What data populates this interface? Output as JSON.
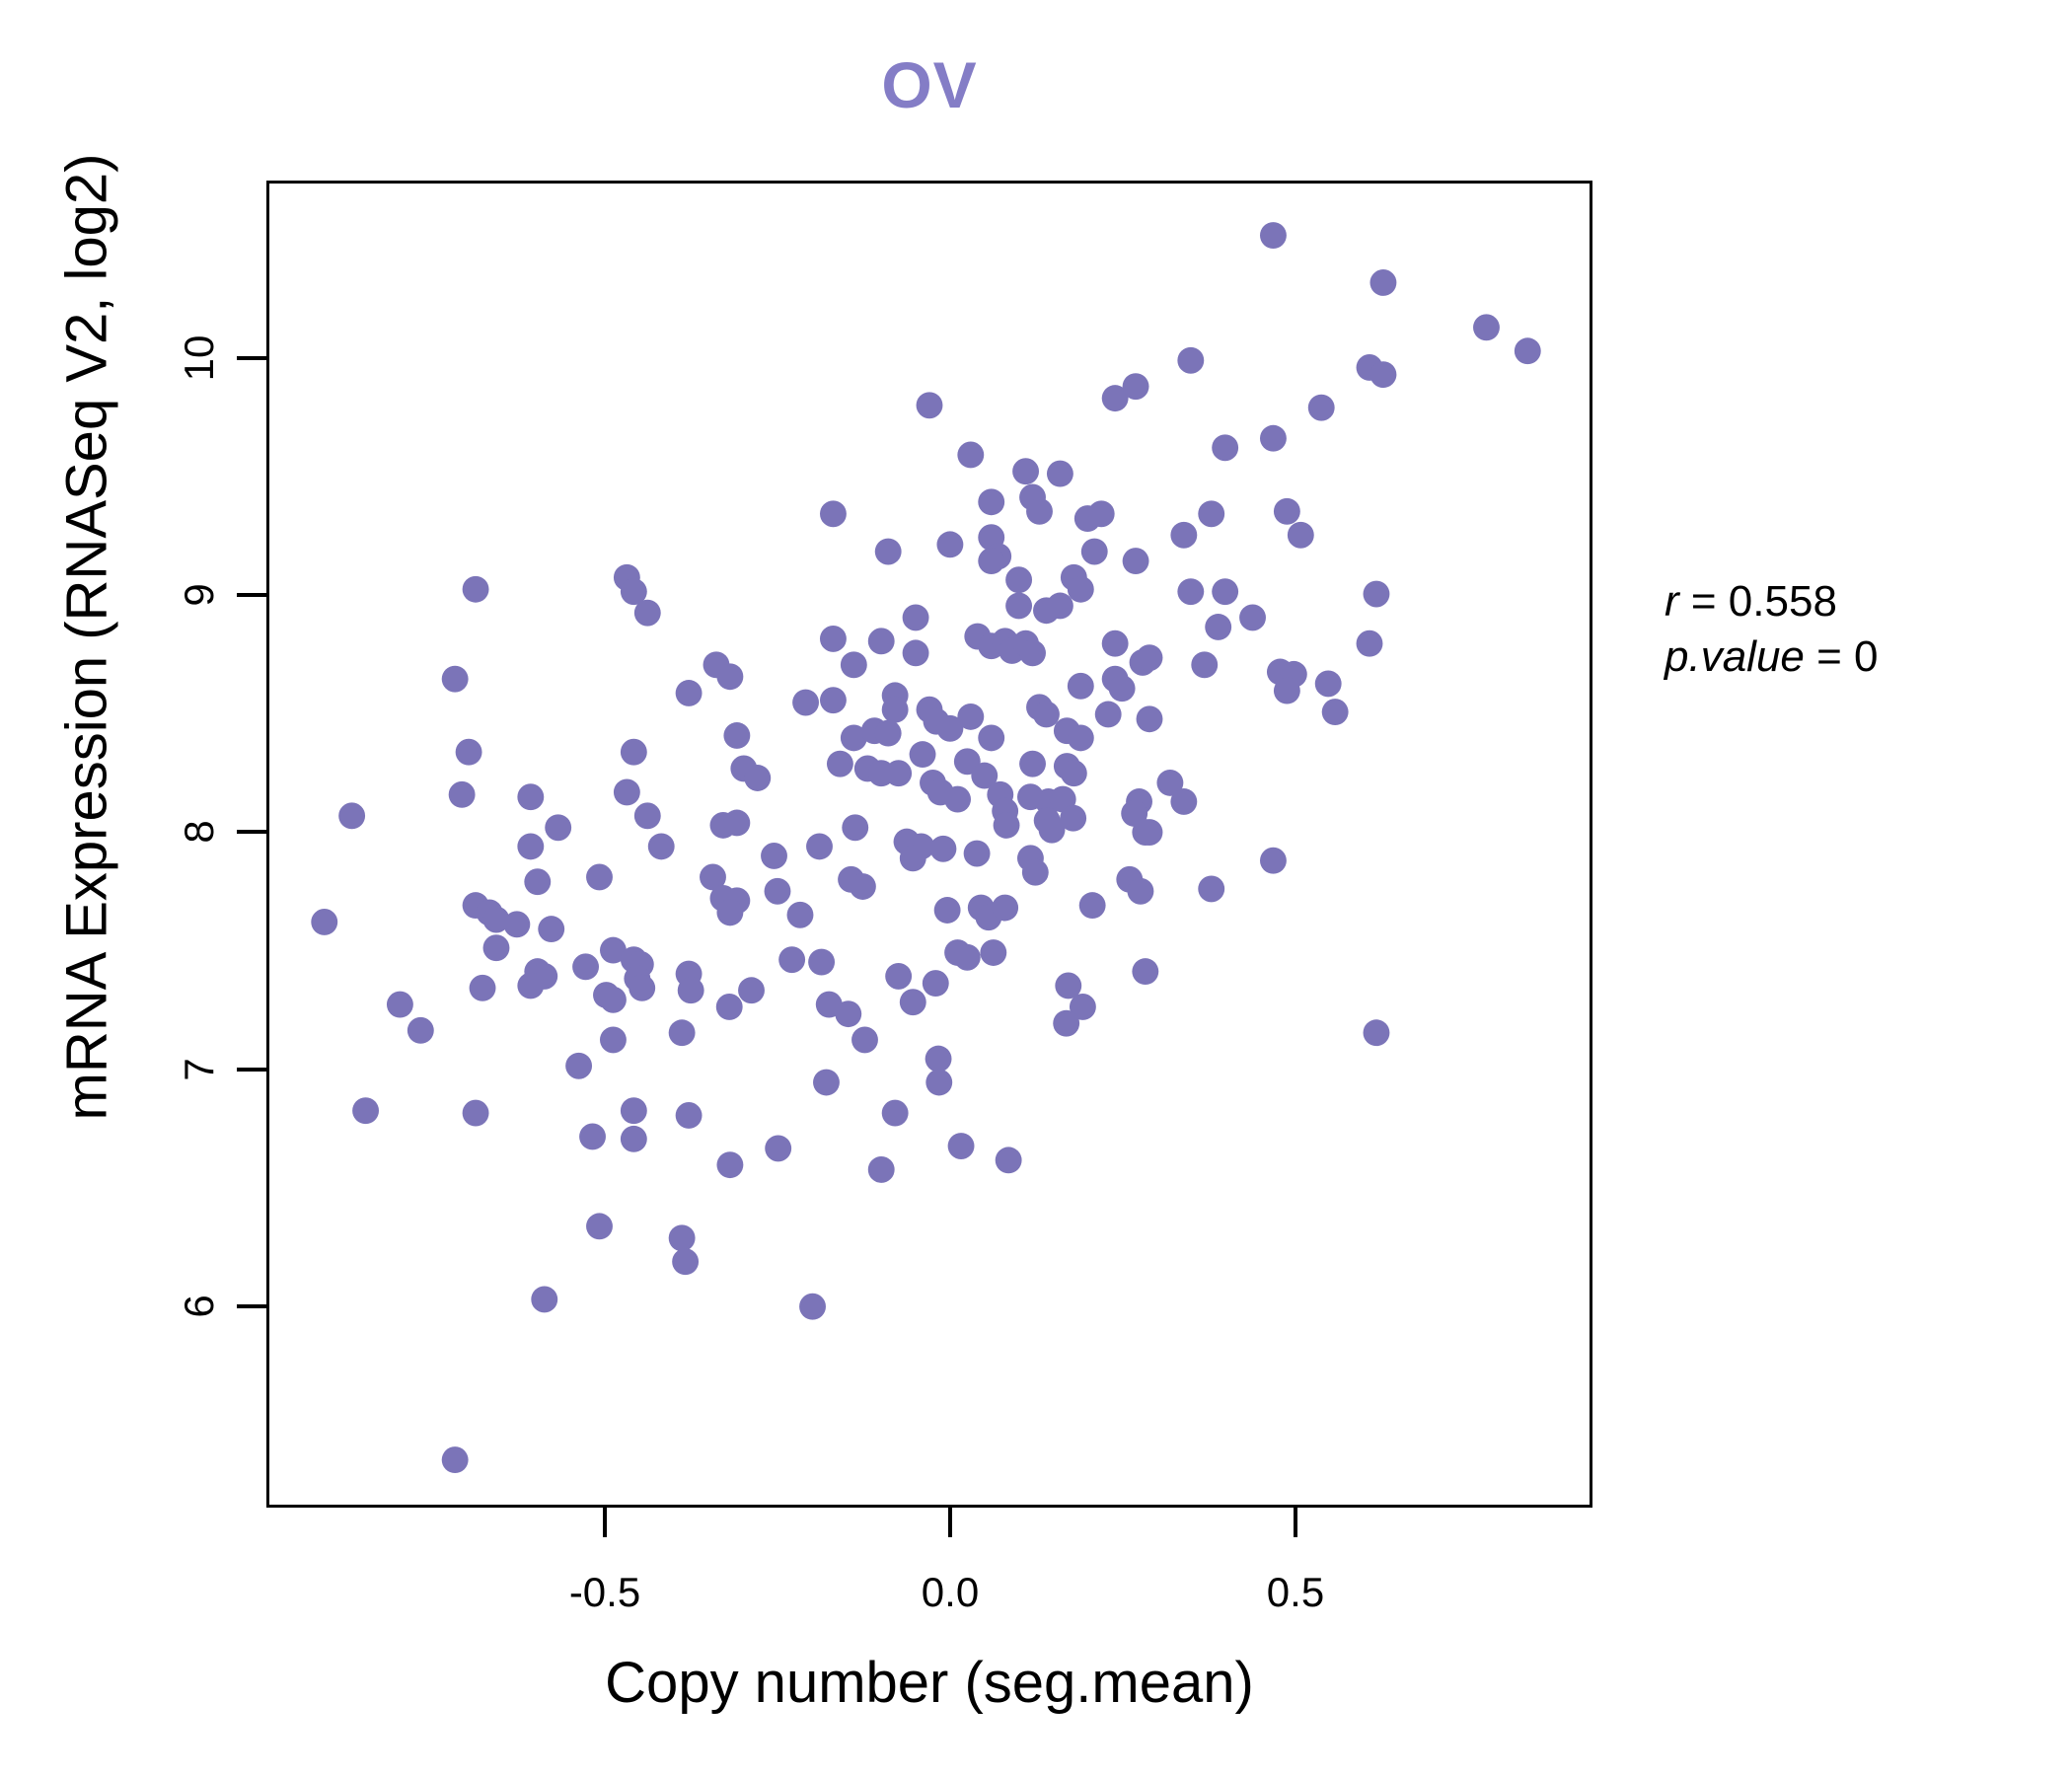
{
  "title": "OV",
  "colors": {
    "title": "#847dc6",
    "point": "#7b74b8",
    "axis": "#000000",
    "background": "#ffffff"
  },
  "annotation": {
    "line1_var": "r",
    "line1_rest": " = 0.558",
    "line2_var": "p.value",
    "line2_rest": " = 0"
  },
  "chart_data": {
    "type": "scatter",
    "title": "OV",
    "xlabel": "Copy number (seg.mean)",
    "ylabel": "mRNA Expression (RNASeq V2, log2)",
    "xlim": [
      -0.99,
      0.93
    ],
    "ylim": [
      5.15,
      10.75
    ],
    "x_ticks": {
      "values": [
        -0.5,
        0.0,
        0.5
      ],
      "labels": [
        "-0.5",
        "0.0",
        "0.5"
      ]
    },
    "y_ticks": {
      "values": [
        6,
        7,
        8,
        9,
        10
      ],
      "labels": [
        "6",
        "7",
        "8",
        "9",
        "10"
      ]
    },
    "grid": false,
    "legend": "none",
    "point_radius_px": 13.5,
    "correlation": {
      "r": 0.558,
      "p_value": 0
    },
    "points": [
      [
        -0.69,
        9.03
      ],
      [
        -0.47,
        9.08
      ],
      [
        -0.46,
        9.02
      ],
      [
        -0.44,
        8.93
      ],
      [
        -0.03,
        9.81
      ],
      [
        0.03,
        9.6
      ],
      [
        0.24,
        9.84
      ],
      [
        0.27,
        9.89
      ],
      [
        0.11,
        9.53
      ],
      [
        0.16,
        9.52
      ],
      [
        0.12,
        9.42
      ],
      [
        0.13,
        9.36
      ],
      [
        0.06,
        9.4
      ],
      [
        0.06,
        9.25
      ],
      [
        0.07,
        9.17
      ],
      [
        0.2,
        9.33
      ],
      [
        0.22,
        9.35
      ],
      [
        0.21,
        9.19
      ],
      [
        0.27,
        9.15
      ],
      [
        -0.17,
        9.35
      ],
      [
        -0.09,
        9.19
      ],
      [
        0.0,
        9.22
      ],
      [
        0.06,
        9.15
      ],
      [
        0.1,
        9.07
      ],
      [
        0.1,
        8.96
      ],
      [
        0.18,
        9.08
      ],
      [
        0.19,
        9.03
      ],
      [
        0.14,
        8.94
      ],
      [
        0.16,
        8.96
      ],
      [
        -0.05,
        8.91
      ],
      [
        0.47,
        10.53
      ],
      [
        0.63,
        10.33
      ],
      [
        0.78,
        10.14
      ],
      [
        0.84,
        10.04
      ],
      [
        0.35,
        10.0
      ],
      [
        0.61,
        9.97
      ],
      [
        0.63,
        9.94
      ],
      [
        0.54,
        9.8
      ],
      [
        0.4,
        9.63
      ],
      [
        0.47,
        9.67
      ],
      [
        0.38,
        9.35
      ],
      [
        0.34,
        9.26
      ],
      [
        0.49,
        9.36
      ],
      [
        0.51,
        9.26
      ],
      [
        0.35,
        9.02
      ],
      [
        0.4,
        9.02
      ],
      [
        0.44,
        8.91
      ],
      [
        0.39,
        8.87
      ],
      [
        0.62,
        9.01
      ],
      [
        -0.72,
        8.65
      ],
      [
        -0.7,
        8.34
      ],
      [
        -0.71,
        8.16
      ],
      [
        -0.87,
        8.07
      ],
      [
        -0.61,
        8.15
      ],
      [
        -0.57,
        8.02
      ],
      [
        -0.61,
        7.94
      ],
      [
        -0.6,
        7.79
      ],
      [
        -0.46,
        8.34
      ],
      [
        -0.47,
        8.17
      ],
      [
        -0.44,
        8.07
      ],
      [
        -0.42,
        7.94
      ],
      [
        -0.38,
        8.59
      ],
      [
        -0.51,
        7.81
      ],
      [
        -0.69,
        7.69
      ],
      [
        -0.67,
        7.66
      ],
      [
        -0.66,
        7.63
      ],
      [
        -0.63,
        7.61
      ],
      [
        -0.58,
        7.59
      ],
      [
        -0.66,
        7.51
      ],
      [
        -0.91,
        7.62
      ],
      [
        -0.6,
        7.41
      ],
      [
        -0.59,
        7.39
      ],
      [
        -0.61,
        7.35
      ],
      [
        -0.53,
        7.43
      ],
      [
        -0.68,
        7.34
      ],
      [
        -0.49,
        7.5
      ],
      [
        -0.46,
        7.46
      ],
      [
        -0.45,
        7.44
      ],
      [
        -0.5,
        7.31
      ],
      [
        -0.49,
        7.29
      ],
      [
        -0.455,
        7.38
      ],
      [
        -0.448,
        7.34
      ],
      [
        -0.38,
        7.4
      ],
      [
        -0.377,
        7.33
      ],
      [
        -0.8,
        7.27
      ],
      [
        -0.77,
        7.16
      ],
      [
        -0.49,
        7.12
      ],
      [
        -0.39,
        7.15
      ],
      [
        -0.54,
        7.01
      ],
      [
        -0.17,
        8.82
      ],
      [
        -0.1,
        8.81
      ],
      [
        -0.05,
        8.76
      ],
      [
        -0.14,
        8.71
      ],
      [
        -0.34,
        8.71
      ],
      [
        -0.32,
        8.66
      ],
      [
        0.04,
        8.83
      ],
      [
        0.06,
        8.79
      ],
      [
        0.08,
        8.81
      ],
      [
        0.09,
        8.77
      ],
      [
        0.11,
        8.8
      ],
      [
        0.12,
        8.76
      ],
      [
        0.24,
        8.8
      ],
      [
        0.28,
        8.72
      ],
      [
        0.24,
        8.65
      ],
      [
        0.25,
        8.61
      ],
      [
        0.19,
        8.62
      ],
      [
        -0.21,
        8.55
      ],
      [
        -0.17,
        8.56
      ],
      [
        -0.08,
        8.58
      ],
      [
        -0.08,
        8.52
      ],
      [
        -0.03,
        8.52
      ],
      [
        -0.02,
        8.47
      ],
      [
        0.0,
        8.44
      ],
      [
        0.03,
        8.49
      ],
      [
        0.13,
        8.53
      ],
      [
        0.14,
        8.5
      ],
      [
        0.17,
        8.43
      ],
      [
        0.23,
        8.5
      ],
      [
        0.29,
        8.48
      ],
      [
        -0.31,
        8.41
      ],
      [
        -0.14,
        8.4
      ],
      [
        -0.11,
        8.43
      ],
      [
        -0.09,
        8.42
      ],
      [
        -0.04,
        8.33
      ],
      [
        0.06,
        8.4
      ],
      [
        0.19,
        8.4
      ],
      [
        -0.16,
        8.29
      ],
      [
        -0.12,
        8.27
      ],
      [
        -0.1,
        8.25
      ],
      [
        -0.075,
        8.25
      ],
      [
        0.025,
        8.3
      ],
      [
        0.05,
        8.24
      ],
      [
        0.12,
        8.29
      ],
      [
        0.17,
        8.28
      ],
      [
        0.18,
        8.25
      ],
      [
        -0.3,
        8.27
      ],
      [
        -0.28,
        8.23
      ],
      [
        -0.025,
        8.21
      ],
      [
        -0.014,
        8.17
      ],
      [
        0.011,
        8.14
      ],
      [
        0.073,
        8.16
      ],
      [
        0.08,
        8.09
      ],
      [
        0.082,
        8.03
      ],
      [
        0.117,
        8.15
      ],
      [
        0.143,
        8.13
      ],
      [
        0.164,
        8.14
      ],
      [
        0.141,
        8.05
      ],
      [
        0.148,
        8.01
      ],
      [
        0.179,
        8.06
      ],
      [
        0.275,
        8.13
      ],
      [
        0.268,
        8.08
      ],
      [
        0.284,
        8.0
      ],
      [
        -0.33,
        8.03
      ],
      [
        -0.31,
        8.04
      ],
      [
        -0.138,
        8.02
      ],
      [
        -0.19,
        7.94
      ],
      [
        -0.063,
        7.96
      ],
      [
        -0.042,
        7.94
      ],
      [
        -0.054,
        7.89
      ],
      [
        -0.01,
        7.93
      ],
      [
        0.039,
        7.91
      ],
      [
        -0.256,
        7.9
      ],
      [
        0.117,
        7.89
      ],
      [
        0.124,
        7.83
      ],
      [
        0.207,
        7.69
      ],
      [
        0.261,
        7.8
      ],
      [
        0.277,
        7.75
      ],
      [
        -0.251,
        7.75
      ],
      [
        -0.144,
        7.8
      ],
      [
        -0.127,
        7.77
      ],
      [
        -0.345,
        7.81
      ],
      [
        -0.33,
        7.72
      ],
      [
        -0.31,
        7.71
      ],
      [
        -0.32,
        7.66
      ],
      [
        -0.218,
        7.65
      ],
      [
        -0.004,
        7.67
      ],
      [
        0.045,
        7.68
      ],
      [
        0.056,
        7.64
      ],
      [
        0.08,
        7.68
      ],
      [
        -0.23,
        7.46
      ],
      [
        -0.187,
        7.45
      ],
      [
        0.011,
        7.49
      ],
      [
        0.025,
        7.47
      ],
      [
        0.063,
        7.49
      ],
      [
        -0.075,
        7.39
      ],
      [
        -0.021,
        7.36
      ],
      [
        -0.054,
        7.28
      ],
      [
        0.172,
        7.35
      ],
      [
        0.193,
        7.26
      ],
      [
        0.169,
        7.19
      ],
      [
        0.284,
        7.41
      ],
      [
        -0.321,
        7.26
      ],
      [
        -0.289,
        7.33
      ],
      [
        -0.176,
        7.27
      ],
      [
        -0.148,
        7.23
      ],
      [
        -0.124,
        7.12
      ],
      [
        -0.017,
        7.04
      ],
      [
        0.61,
        8.8
      ],
      [
        0.37,
        8.71
      ],
      [
        0.29,
        8.74
      ],
      [
        0.48,
        8.68
      ],
      [
        0.5,
        8.67
      ],
      [
        0.49,
        8.6
      ],
      [
        0.55,
        8.63
      ],
      [
        0.56,
        8.51
      ],
      [
        0.32,
        8.21
      ],
      [
        0.34,
        8.13
      ],
      [
        0.29,
        8.0
      ],
      [
        0.47,
        7.88
      ],
      [
        0.38,
        7.76
      ],
      [
        0.62,
        7.15
      ],
      [
        -0.85,
        6.82
      ],
      [
        -0.69,
        6.81
      ],
      [
        -0.52,
        6.71
      ],
      [
        -0.46,
        6.82
      ],
      [
        -0.46,
        6.7
      ],
      [
        -0.38,
        6.8
      ],
      [
        -0.51,
        6.33
      ],
      [
        -0.39,
        6.28
      ],
      [
        -0.385,
        6.18
      ],
      [
        -0.59,
        6.02
      ],
      [
        -0.72,
        5.34
      ],
      [
        -0.18,
        6.94
      ],
      [
        -0.016,
        6.94
      ],
      [
        -0.08,
        6.81
      ],
      [
        -0.25,
        6.66
      ],
      [
        -0.32,
        6.59
      ],
      [
        -0.1,
        6.57
      ],
      [
        0.016,
        6.67
      ],
      [
        0.085,
        6.61
      ],
      [
        -0.2,
        5.99
      ]
    ]
  }
}
